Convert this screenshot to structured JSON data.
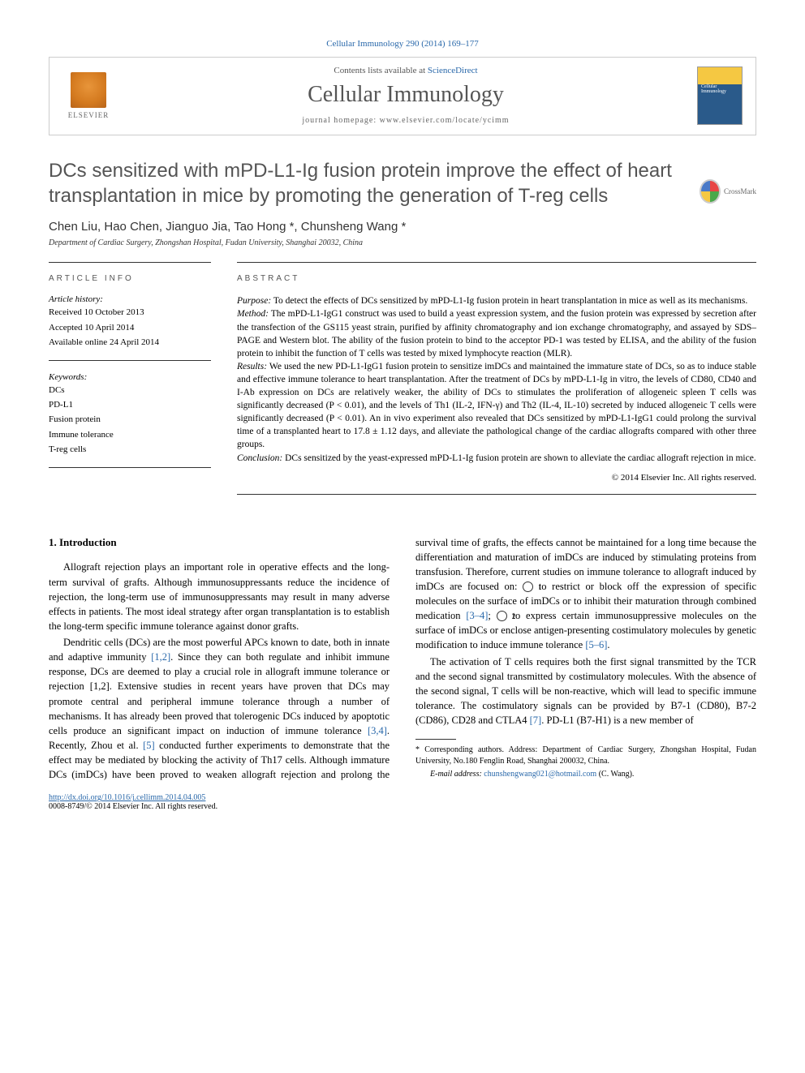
{
  "citation": "Cellular Immunology 290 (2014) 169–177",
  "header": {
    "contents_prefix": "Contents lists available at ",
    "contents_link": "ScienceDirect",
    "journal_name": "Cellular Immunology",
    "homepage_prefix": "journal homepage: ",
    "homepage_url": "www.elsevier.com/locate/ycimm",
    "publisher": "ELSEVIER"
  },
  "crossmark": "CrossMark",
  "title": "DCs sensitized with mPD-L1-Ig fusion protein improve the effect of heart transplantation in mice by promoting the generation of T-reg cells",
  "authors": "Chen Liu, Hao Chen, Jianguo Jia, Tao Hong *, Chunsheng Wang *",
  "affiliation": "Department of Cardiac Surgery, Zhongshan Hospital, Fudan University, Shanghai 20032, China",
  "article_info": {
    "heading": "ARTICLE INFO",
    "history_label": "Article history:",
    "received": "Received 10 October 2013",
    "accepted": "Accepted 10 April 2014",
    "available": "Available online 24 April 2014",
    "keywords_label": "Keywords:",
    "keywords": [
      "DCs",
      "PD-L1",
      "Fusion protein",
      "Immune tolerance",
      "T-reg cells"
    ]
  },
  "abstract": {
    "heading": "ABSTRACT",
    "purpose_label": "Purpose:",
    "purpose": " To detect the effects of DCs sensitized by mPD-L1-Ig fusion protein in heart transplantation in mice as well as its mechanisms.",
    "method_label": "Method:",
    "method": " The mPD-L1-IgG1 construct was used to build a yeast expression system, and the fusion protein was expressed by secretion after the transfection of the GS115 yeast strain, purified by affinity chromatography and ion exchange chromatography, and assayed by SDS–PAGE and Western blot. The ability of the fusion protein to bind to the acceptor PD-1 was tested by ELISA, and the ability of the fusion protein to inhibit the function of T cells was tested by mixed lymphocyte reaction (MLR).",
    "results_label": "Results:",
    "results": " We used the new PD-L1-IgG1 fusion protein to sensitize imDCs and maintained the immature state of DCs, so as to induce stable and effective immune tolerance to heart transplantation. After the treatment of DCs by mPD-L1-Ig in vitro, the levels of CD80, CD40 and I-Ab expression on DCs are relatively weaker, the ability of DCs to stimulates the proliferation of allogeneic spleen T cells was significantly decreased (P < 0.01), and the levels of Th1 (IL-2, IFN-γ) and Th2 (IL-4, IL-10) secreted by induced allogeneic T cells were significantly decreased (P < 0.01). An in vivo experiment also revealed that DCs sensitized by mPD-L1-IgG1 could prolong the survival time of a transplanted heart to 17.8 ± 1.12 days, and alleviate the pathological change of the cardiac allografts compared with other three groups.",
    "conclusion_label": "Conclusion:",
    "conclusion": " DCs sensitized by the yeast-expressed mPD-L1-Ig fusion protein are shown to alleviate the cardiac allograft rejection in mice.",
    "copyright": "© 2014 Elsevier Inc. All rights reserved."
  },
  "body": {
    "section1_heading": "1. Introduction",
    "p1": "Allograft rejection plays an important role in operative effects and the long-term survival of grafts. Although immunosuppressants reduce the incidence of rejection, the long-term use of immunosuppressants may result in many adverse effects in patients. The most ideal strategy after organ transplantation is to establish the long-term specific immune tolerance against donor grafts.",
    "p2a": "Dendritic cells (DCs) are the most powerful APCs known to date, both in innate and adaptive immunity ",
    "p2_ref1": "[1,2]",
    "p2b": ". Since they can both regulate and inhibit immune response, DCs are deemed to play a crucial role in allograft immune tolerance or rejection [1,2]. Extensive studies in recent years have proven that DCs may promote central and peripheral immune tolerance through a number of mechanisms. It has already been proved that tolerogenic DCs induced by apoptotic cells produce an significant impact on",
    "p2c": "induction of immune tolerance ",
    "p2_ref2": "[3,4]",
    "p2d": ". Recently, Zhou et al. ",
    "p2_ref3": "[5]",
    "p2e": " conducted further experiments to demonstrate that the effect may be mediated by blocking the activity of Th17 cells. Although immature DCs (imDCs) have been proved to weaken allograft rejection and prolong the survival time of grafts, the effects cannot be maintained for a long time because the differentiation and maturation of imDCs are induced by stimulating proteins from transfusion. Therefore, current studies on immune tolerance to allograft induced by imDCs are focused on: ",
    "p2f": " to restrict or block off the expression of specific molecules on the surface of imDCs or to inhibit their maturation through combined medication ",
    "p2_ref4": "[3–4]",
    "p2g": "; ",
    "p2h": " to express certain immunosuppressive molecules on the surface of imDCs or enclose antigen-presenting costimulatory molecules by genetic modification to induce immune tolerance ",
    "p2_ref5": "[5–6]",
    "p2i": ".",
    "p3a": "The activation of T cells requires both the first signal transmitted by the TCR and the second signal transmitted by costimulatory molecules. With the absence of the second signal, T cells will be non-reactive, which will lead to specific immune tolerance. The costimulatory signals can be provided by B7-1 (CD80), B7-2 (CD86), CD28 and CTLA4 ",
    "p3_ref1": "[7]",
    "p3b": ". PD-L1 (B7-H1) is a new member of"
  },
  "footnote": {
    "corresponding": "* Corresponding authors. Address: Department of Cardiac Surgery, Zhongshan Hospital, Fudan University, No.180 Fenglin Road, Shanghai 200032, China.",
    "email_label": "E-mail address: ",
    "email": "chunshengwang021@hotmail.com",
    "email_suffix": " (C. Wang)."
  },
  "footer": {
    "doi": "http://dx.doi.org/10.1016/j.cellimm.2014.04.005",
    "issn": "0008-8749/© 2014 Elsevier Inc. All rights reserved."
  }
}
